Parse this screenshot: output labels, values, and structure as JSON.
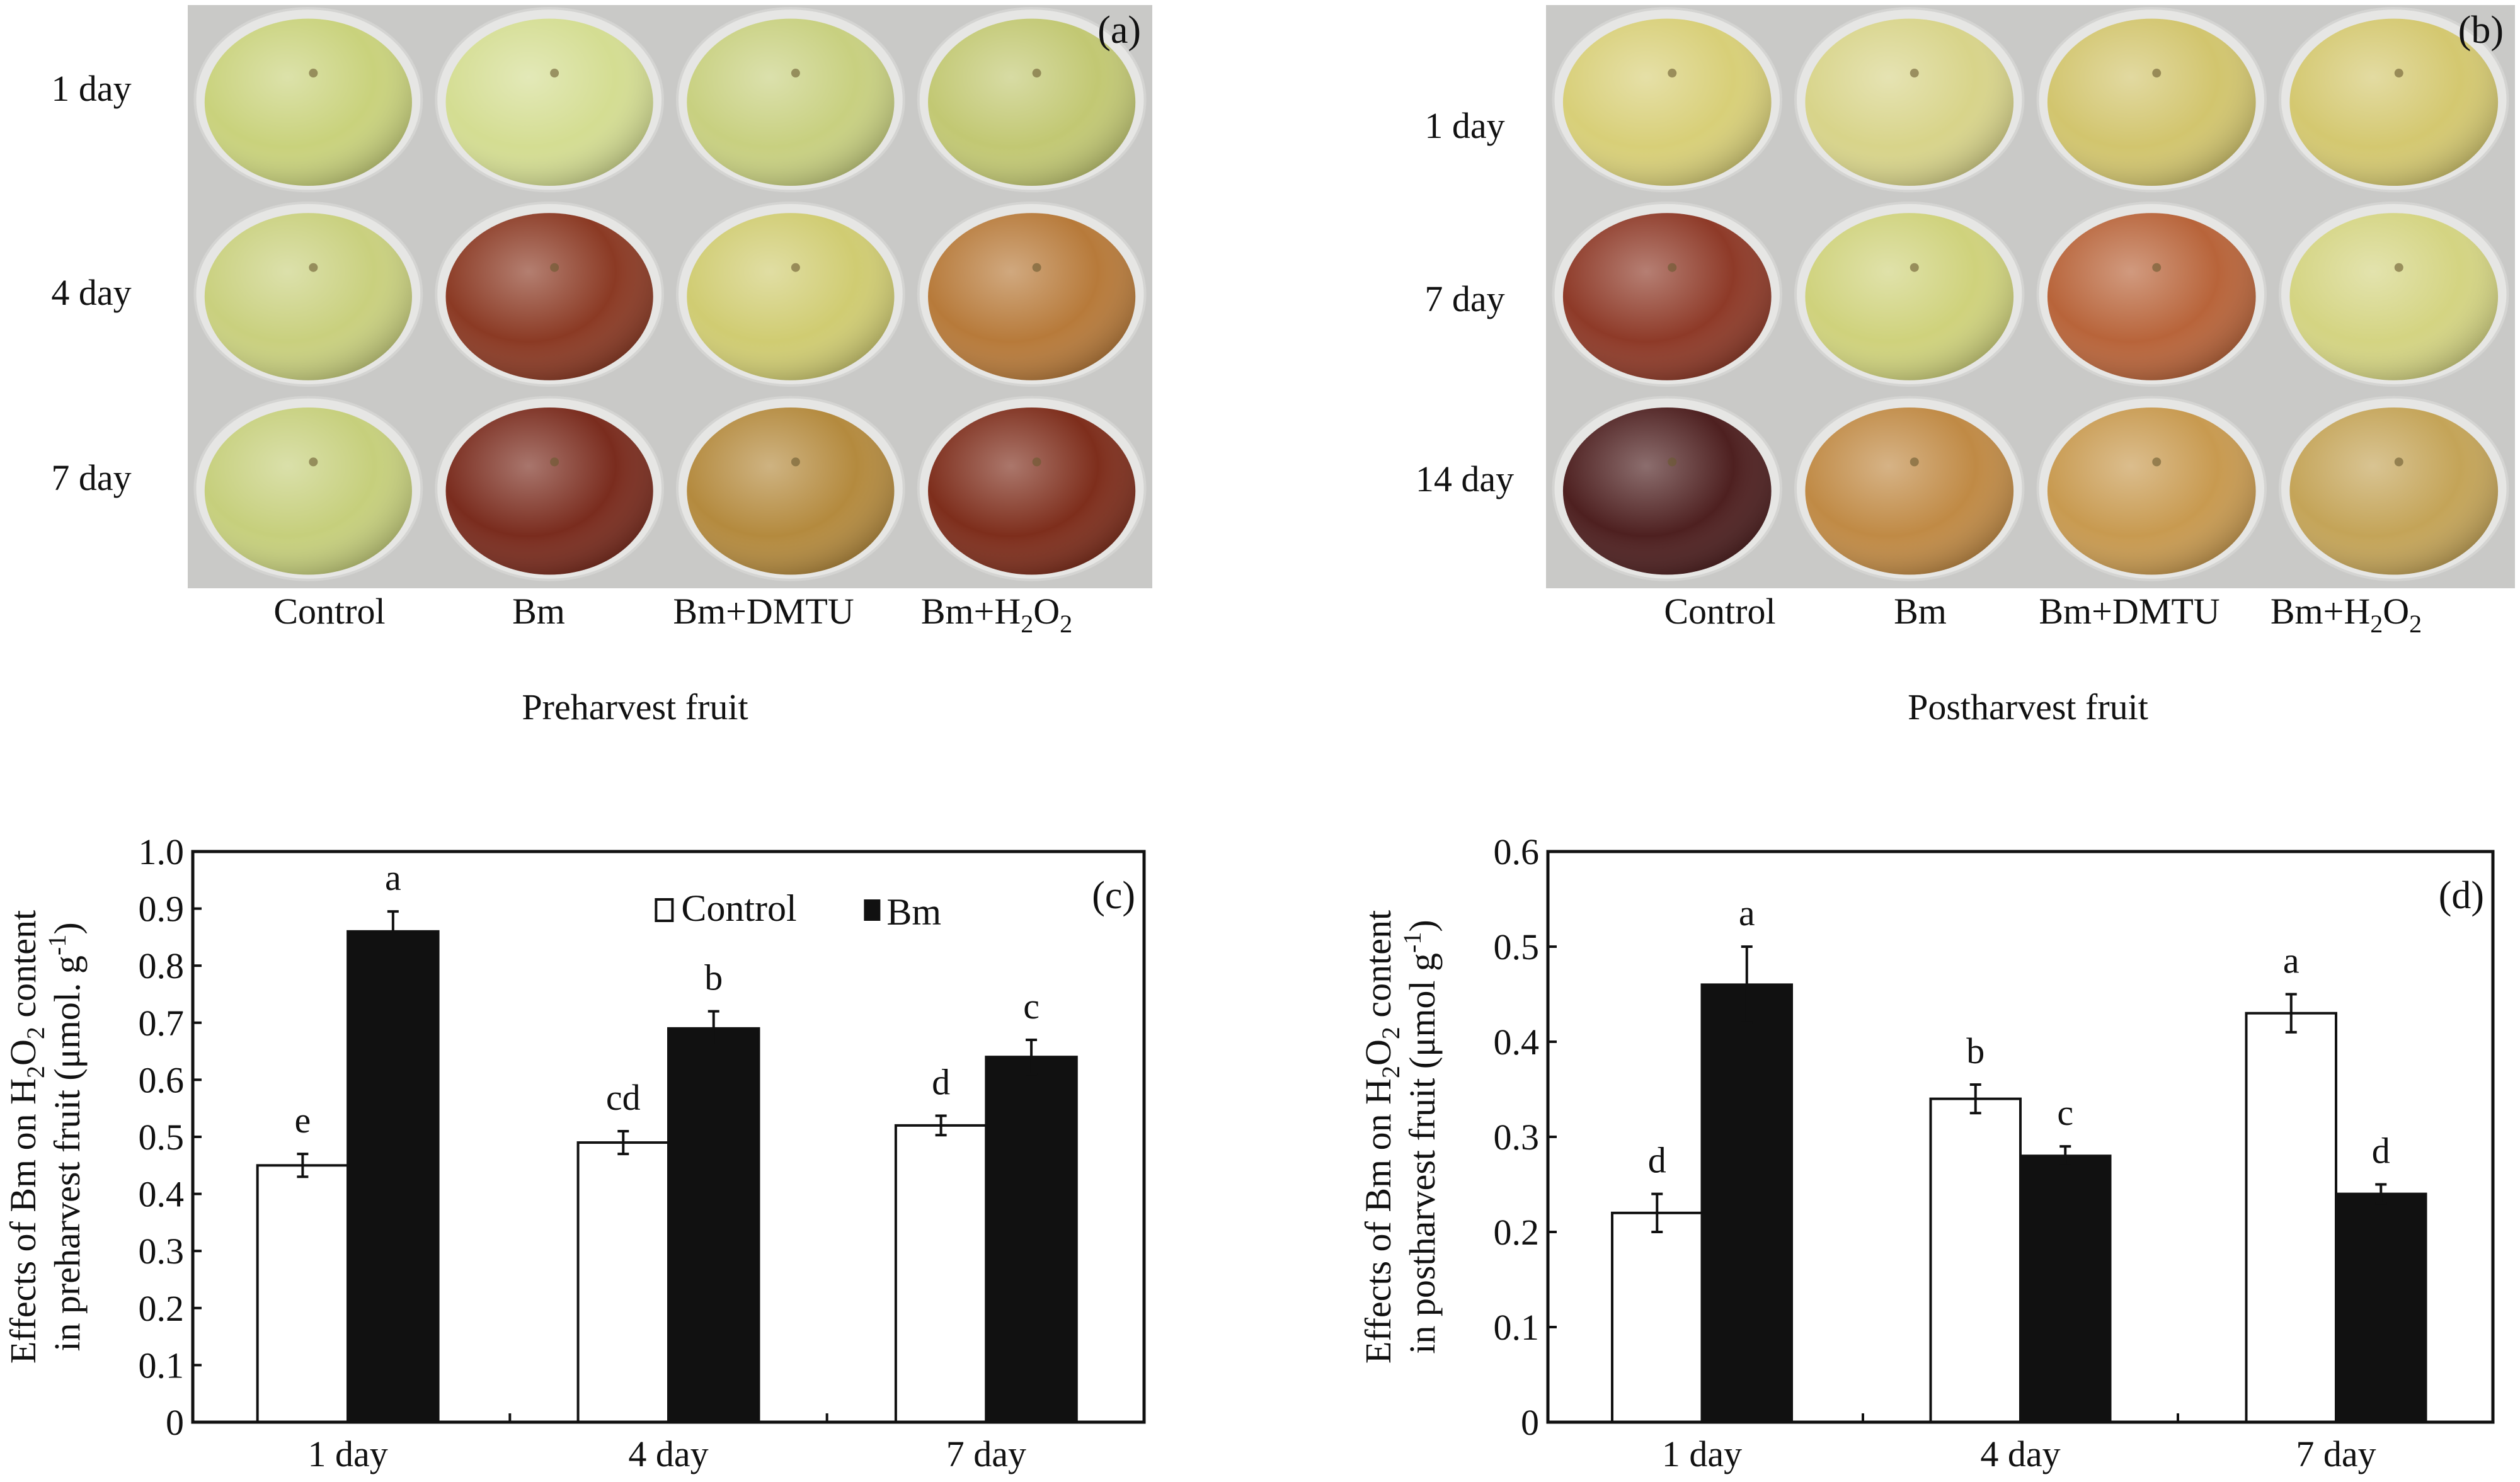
{
  "panel_a": {
    "tag": "(a)",
    "rows": [
      "1 day",
      "4 day",
      "7 day"
    ],
    "columns": [
      "Control",
      "Bm",
      "Bm+DMTU",
      "Bm+H2O2"
    ],
    "caption": "Preharvest fruit",
    "fruit_colors": [
      [
        "#c9d27c",
        "#d4dd92",
        "#c8d080",
        "#c2c873"
      ],
      [
        "#c9d07e",
        "#8b3a24",
        "#d0cc72",
        "#b77a3a"
      ],
      [
        "#c6cf7c",
        "#7a2c1e",
        "#b48a3e",
        "#7e2e1c"
      ]
    ]
  },
  "panel_b": {
    "tag": "(b)",
    "rows": [
      "1 day",
      "7 day",
      "14 day"
    ],
    "columns": [
      "Control",
      "Bm",
      "Bm+DMTU",
      "Bm+H2O2"
    ],
    "caption": "Postharvest fruit",
    "fruit_colors": [
      [
        "#d8cf78",
        "#d8d48a",
        "#d2c56e",
        "#d4c870"
      ],
      [
        "#8e3a28",
        "#cfd27c",
        "#b8643a",
        "#d4d482"
      ],
      [
        "#4e2020",
        "#c08a45",
        "#c89a50",
        "#c4a458"
      ]
    ]
  },
  "chart_data": [
    {
      "type": "bar",
      "tag": "(c)",
      "categories": [
        "1 day",
        "4 day",
        "7 day"
      ],
      "ylabel_line1": [
        "Effects of Bm on H",
        "2",
        "O",
        "2",
        " content"
      ],
      "ylabel_line2": [
        "in preharvest fruit (μmol. g",
        "-1",
        ")"
      ],
      "ylim": [
        0,
        1.0
      ],
      "yticks": [
        "0",
        "0.1",
        "0.2",
        "0.3",
        "0.4",
        "0.5",
        "0.6",
        "0.7",
        "0.8",
        "0.9",
        "1.0"
      ],
      "legend": [
        "Control",
        "Bm"
      ],
      "legend_placement": "top-right",
      "series": [
        {
          "name": "Control",
          "color": "#ffffff",
          "values": [
            0.45,
            0.49,
            0.52
          ],
          "errors": [
            0.02,
            0.02,
            0.017
          ],
          "letters": [
            "e",
            "cd",
            "d"
          ]
        },
        {
          "name": "Bm",
          "color": "#111111",
          "values": [
            0.86,
            0.69,
            0.64
          ],
          "errors": [
            0.035,
            0.03,
            0.03
          ],
          "letters": [
            "a",
            "b",
            "c"
          ]
        }
      ]
    },
    {
      "type": "bar",
      "tag": "(d)",
      "categories": [
        "1 day",
        "4 day",
        "7 day"
      ],
      "ylabel_line1": [
        "Effects of Bm on H",
        "2",
        "O",
        "2",
        " content"
      ],
      "ylabel_line2": [
        "in postharvest fruit (μmol g",
        "-1",
        ")"
      ],
      "ylim": [
        0,
        0.6
      ],
      "yticks": [
        "0",
        "0.1",
        "0.2",
        "0.3",
        "0.4",
        "0.5",
        "0.6"
      ],
      "legend": [],
      "series": [
        {
          "name": "Control",
          "color": "#ffffff",
          "values": [
            0.22,
            0.34,
            0.43
          ],
          "errors": [
            0.02,
            0.015,
            0.02
          ],
          "letters": [
            "d",
            "b",
            "a"
          ]
        },
        {
          "name": "Bm",
          "color": "#111111",
          "values": [
            0.46,
            0.28,
            0.24
          ],
          "errors": [
            0.04,
            0.01,
            0.01
          ],
          "letters": [
            "a",
            "c",
            "d"
          ]
        }
      ]
    }
  ]
}
